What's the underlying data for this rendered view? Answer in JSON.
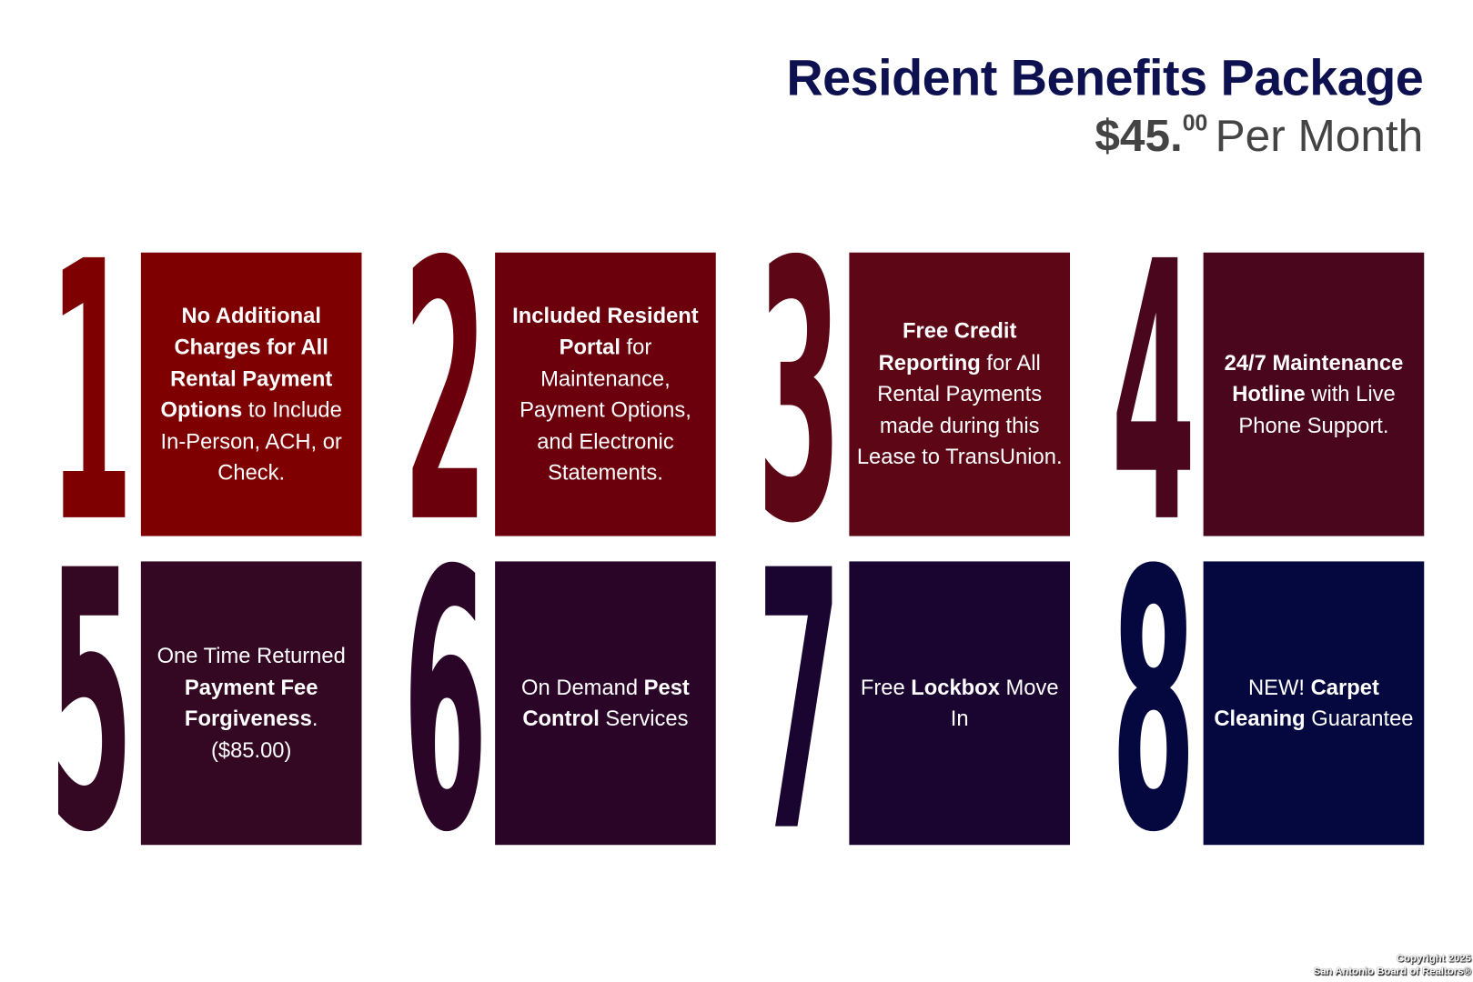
{
  "header": {
    "title": "Resident Benefits Package",
    "price_main": "$45.",
    "price_cents": "00",
    "price_period": "Per Month"
  },
  "cards": [
    {
      "number": "1",
      "color": "#7f0000",
      "bold": "No Additional Charges for All Rental Payment Options",
      "rest": " to Include In-Person, ACH, or Check."
    },
    {
      "number": "2",
      "color": "#6b000c",
      "bold": "Included Resident Portal",
      "rest": " for Maintenance, Payment Options, and Electronic Statements."
    },
    {
      "number": "3",
      "color": "#5d0716",
      "bold": "Free Credit Reporting",
      "rest": " for All Rental Payments made during this Lease to TransUnion."
    },
    {
      "number": "4",
      "color": "#4a061c",
      "bold": "24/7 Maintenance Hotline",
      "rest": " with Live Phone Support."
    },
    {
      "number": "5",
      "pre": "One Time Returned ",
      "color": "#340822",
      "bold": "Payment Fee Forgiveness",
      "rest": ". ($85.00)"
    },
    {
      "number": "6",
      "pre": "On Demand ",
      "color": "#2a0528",
      "bold": "Pest Control",
      "rest": " Services"
    },
    {
      "number": "7",
      "pre": "Free ",
      "color": "#1a0531",
      "bold": "Lockbox",
      "rest": " Move In"
    },
    {
      "number": "8",
      "pre": "NEW! ",
      "color": "#05073f",
      "bold": "Carpet Cleaning",
      "rest": " Guarantee"
    }
  ],
  "footer": {
    "line1": "Copyright 2025",
    "line2": "San Antonio Board of Realtors®"
  }
}
